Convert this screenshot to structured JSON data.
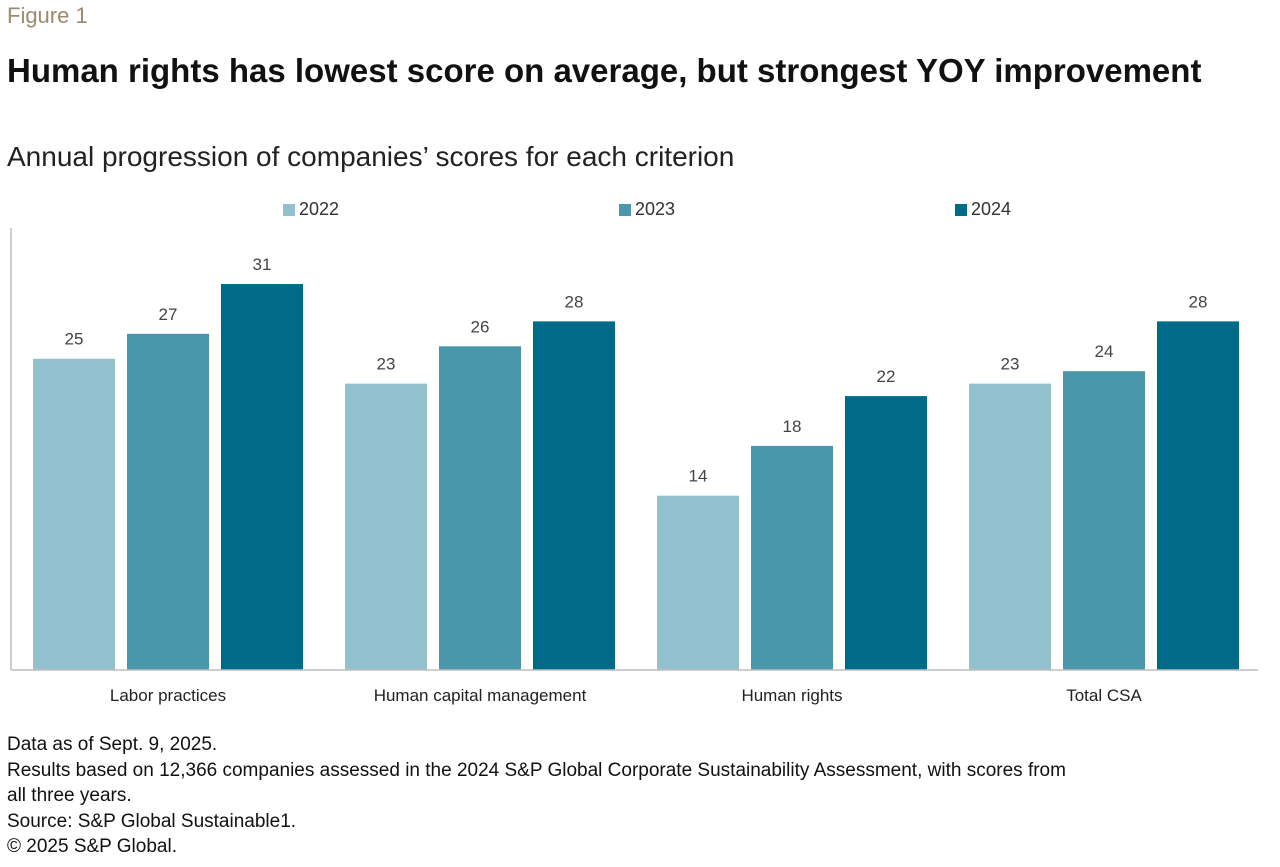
{
  "figure_label": "Figure 1",
  "title": "Human rights has lowest score on average, but strongest YOY improvement",
  "subtitle": "Annual progression of companies’ scores for each criterion",
  "colors": {
    "2022": "#93c0cd",
    "2023": "#4a96aa",
    "2024": "#006b88",
    "axis": "#bdbdbd",
    "label_text": "#444444"
  },
  "chart_data": {
    "type": "bar",
    "title": "Human rights has lowest score on average, but strongest YOY improvement",
    "subtitle": "Annual progression of companies’ scores for each criterion",
    "xlabel": "",
    "ylabel": "",
    "ylim": [
      0,
      35.5
    ],
    "grid": false,
    "legend_position": "top",
    "categories": [
      "Labor practices",
      "Human capital management",
      "Human rights",
      "Total CSA"
    ],
    "series": [
      {
        "name": "2022",
        "values": [
          25,
          23,
          14,
          23
        ]
      },
      {
        "name": "2023",
        "values": [
          27,
          26,
          18,
          24
        ]
      },
      {
        "name": "2024",
        "values": [
          31,
          28,
          22,
          28
        ]
      }
    ]
  },
  "notes": [
    "Data as of Sept. 9, 2025.",
    "Results based on 12,366 companies assessed in the 2024 S&P Global Corporate Sustainability Assessment, with scores from",
    "all three years.",
    "Source: S&P Global Sustainable1.",
    "© 2025 S&P Global."
  ]
}
